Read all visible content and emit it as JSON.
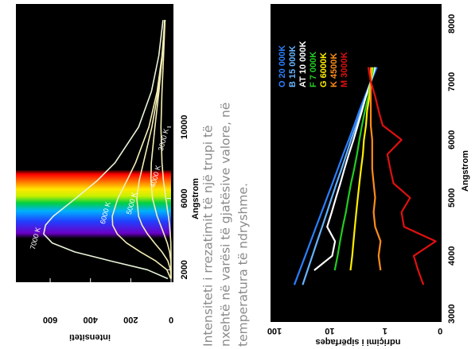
{
  "caption": [
    "Intensiteti i rrezatimit të një trupi të",
    "nxehtë në varësi të gjatësive valore, në",
    "temperatura të ndryshme."
  ],
  "chart_data": [
    {
      "type": "line",
      "xlabel": "Angstrom",
      "ylabel": "intensiteti",
      "x": [
        1500,
        2000,
        2500,
        3000,
        3500,
        4000,
        4500,
        5000,
        6000,
        7000,
        8000,
        10000,
        12000,
        14000,
        16000
      ],
      "xlim": [
        1300,
        16900
      ],
      "xticks": [
        2000,
        6000,
        10000
      ],
      "ylim": [
        0,
        770
      ],
      "yticks": [
        0,
        200,
        400,
        600
      ],
      "series": [
        {
          "name": "7000 K",
          "color": "#e8f4d8",
          "values": [
            16,
            118,
            302,
            478,
            590,
            632,
            623,
            585,
            474,
            366,
            278,
            161,
            97,
            61,
            40
          ]
        },
        {
          "name": "6000 K",
          "color": "#f3eeb4",
          "values": [
            1.6,
            21,
            77,
            152,
            221,
            267,
            290,
            292,
            264,
            219,
            176,
            110,
            69,
            45,
            30
          ]
        },
        {
          "name": "5000 K",
          "color": "#f3eeb4",
          "values": [
            0.1,
            2.8,
            16,
            45,
            82,
            117,
            144,
            161,
            170,
            158,
            137,
            95,
            64,
            43,
            30
          ]
        },
        {
          "name": "4000 K",
          "color": "#f3eeb4",
          "values": [
            0,
            0.1,
            1.6,
            7.3,
            19,
            35,
            52,
            69,
            92,
            100,
            98,
            80,
            60,
            44,
            32
          ]
        },
        {
          "name": "3000 K",
          "color": "#f3eeb4",
          "values": [
            0,
            0,
            0,
            0.5,
            1.1,
            3.8,
            7.6,
            13,
            26,
            38,
            45,
            50,
            45,
            37,
            30
          ]
        }
      ]
    },
    {
      "type": "line",
      "xlabel": "Angstrom",
      "ylabel": "ndriçimi i sipërfaqes",
      "y_log_scale": true,
      "x": [
        3500,
        3750,
        4000,
        4250,
        4500,
        4750,
        5000,
        5250,
        5500,
        5750,
        6000,
        6250,
        6500,
        6750,
        7000,
        7250
      ],
      "xlim": [
        2860,
        8340
      ],
      "xticks": [
        3000,
        4000,
        5000,
        6000,
        7000,
        8000
      ],
      "ylim": [
        0.094,
        118
      ],
      "yticks": [
        {
          "value": 0.1,
          "label": "0"
        },
        1,
        10,
        100
      ],
      "series": [
        {
          "name": "O 20 000K",
          "color": "#2a7fff",
          "values": [
            43.7,
            34.8,
            27.7,
            22.1,
            17.6,
            14.0,
            11.2,
            8.9,
            7.1,
            5.7,
            4.5,
            3.6,
            2.9,
            2.3,
            1.8,
            1.4
          ]
        },
        {
          "name": "B 15 000K",
          "color": "#66b3ff",
          "values": [
            30.9,
            25.2,
            20.6,
            16.8,
            13.7,
            11.2,
            9.2,
            7.5,
            6.1,
            5.0,
            4.1,
            3.3,
            2.7,
            2.2,
            1.8,
            1.5
          ]
        },
        {
          "name": "AT 10 000K",
          "color": "#ffffff",
          "values": [
            null,
            19.1,
            9.0,
            8.0,
            11.1,
            9.2,
            7.7,
            6.4,
            5.4,
            4.5,
            3.7,
            3.1,
            2.6,
            2.2,
            1.8,
            1.5
          ]
        },
        {
          "name": "F 7 000K",
          "color": "#22cc22",
          "values": [
            null,
            8.1,
            7.2,
            6.5,
            5.8,
            5.1,
            4.6,
            4.1,
            3.6,
            3.2,
            2.9,
            2.6,
            2.3,
            2.0,
            1.8,
            1.6
          ]
        },
        {
          "name": "G 6000K",
          "color": "#ffee00",
          "values": [
            null,
            4.2,
            3.9,
            3.7,
            3.5,
            3.3,
            3.1,
            2.9,
            2.7,
            2.5,
            2.4,
            2.2,
            2.1,
            1.9,
            1.8,
            1.7
          ]
        },
        {
          "name": "K 4500K",
          "color": "#ff8c1a",
          "values": [
            null,
            1.2,
            1.3,
            1.2,
            1.5,
            1.6,
            1.5,
            1.6,
            1.7,
            1.7,
            1.7,
            1.8,
            1.8,
            1.8,
            1.8,
            1.8
          ]
        },
        {
          "name": "M 3000K",
          "color": "#e01010",
          "values": [
            0.2,
            0.25,
            0.3,
            0.12,
            0.45,
            0.5,
            0.35,
            0.7,
            0.8,
            0.9,
            0.5,
            1.1,
            1.3,
            1.5,
            1.8,
            2.0
          ]
        }
      ]
    }
  ]
}
